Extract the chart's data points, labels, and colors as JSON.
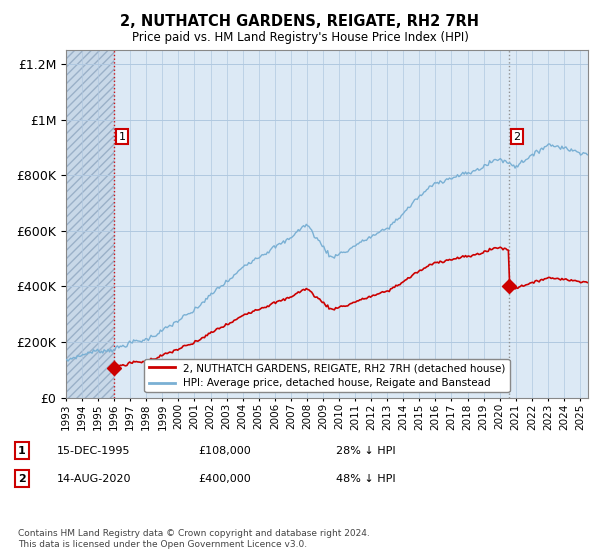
{
  "title": "2, NUTHATCH GARDENS, REIGATE, RH2 7RH",
  "subtitle": "Price paid vs. HM Land Registry's House Price Index (HPI)",
  "legend_entry1": "2, NUTHATCH GARDENS, REIGATE, RH2 7RH (detached house)",
  "legend_entry2": "HPI: Average price, detached house, Reigate and Banstead",
  "sale1_date": "15-DEC-1995",
  "sale1_price": 108000,
  "sale1_text": "28% ↓ HPI",
  "sale2_date": "14-AUG-2020",
  "sale2_price": 400000,
  "sale2_text": "48% ↓ HPI",
  "footer": "Contains HM Land Registry data © Crown copyright and database right 2024.\nThis data is licensed under the Open Government Licence v3.0.",
  "sale_color": "#cc0000",
  "hpi_color": "#7ab0d4",
  "bg_color": "#dce9f5",
  "grid_color": "#b0c8e0",
  "ylim_max": 1250000,
  "sale1_t": 1996.0,
  "sale2_t": 2020.583
}
